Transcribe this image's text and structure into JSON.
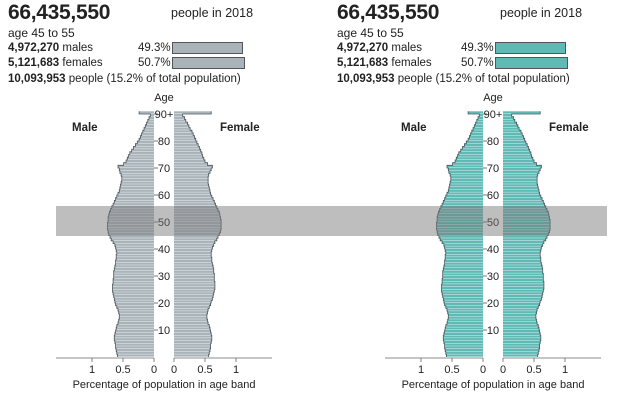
{
  "panels": [
    {
      "population": "66,435,550",
      "population_suffix": "people in 2018",
      "age_range": "age 45 to 55",
      "males_count": "4,972,270",
      "males_label": "males",
      "males_pct": "49.3%",
      "females_count": "5,121,683",
      "females_label": "females",
      "females_pct": "50.7%",
      "total_count": "10,093,953",
      "total_text": "people (15.2% of total population)",
      "color": "#a9b4ba"
    },
    {
      "population": "66,435,550",
      "population_suffix": "people in 2018",
      "age_range": "age 45 to 55",
      "males_count": "4,972,270",
      "males_label": "males",
      "males_pct": "49.3%",
      "females_count": "5,121,683",
      "females_label": "females",
      "females_pct": "50.7%",
      "total_count": "10,093,953",
      "total_text": "people (15.2% of total population)",
      "color": "#5fbab6"
    }
  ],
  "chart_data": {
    "type": "bar",
    "orientation": "horizontal-population-pyramid",
    "age_axis_title": "Age",
    "age_ticks": [
      "10",
      "20",
      "30",
      "40",
      "50",
      "60",
      "70",
      "80",
      "90+"
    ],
    "xlabel": "Percentage of population in age band",
    "x_ticks_male": [
      "1",
      "0.5",
      "0"
    ],
    "x_ticks_female": [
      "0",
      "0.5",
      "1"
    ],
    "xlim": [
      0,
      1.4
    ],
    "male_label": "Male",
    "female_label": "Female",
    "highlight_age_range": [
      45,
      55
    ],
    "ages": [
      0,
      1,
      2,
      3,
      4,
      5,
      6,
      7,
      8,
      9,
      10,
      11,
      12,
      13,
      14,
      15,
      16,
      17,
      18,
      19,
      20,
      21,
      22,
      23,
      24,
      25,
      26,
      27,
      28,
      29,
      30,
      31,
      32,
      33,
      34,
      35,
      36,
      37,
      38,
      39,
      40,
      41,
      42,
      43,
      44,
      45,
      46,
      47,
      48,
      49,
      50,
      51,
      52,
      53,
      54,
      55,
      56,
      57,
      58,
      59,
      60,
      61,
      62,
      63,
      64,
      65,
      66,
      67,
      68,
      69,
      70,
      71,
      72,
      73,
      74,
      75,
      76,
      77,
      78,
      79,
      80,
      81,
      82,
      83,
      84,
      85,
      86,
      87,
      88,
      89,
      90
    ],
    "series": [
      {
        "name": "Male",
        "values": [
          0.59,
          0.6,
          0.61,
          0.62,
          0.62,
          0.63,
          0.64,
          0.64,
          0.63,
          0.62,
          0.61,
          0.6,
          0.58,
          0.57,
          0.56,
          0.56,
          0.57,
          0.58,
          0.6,
          0.62,
          0.63,
          0.64,
          0.65,
          0.66,
          0.67,
          0.67,
          0.67,
          0.66,
          0.66,
          0.65,
          0.65,
          0.65,
          0.64,
          0.63,
          0.62,
          0.62,
          0.61,
          0.61,
          0.6,
          0.61,
          0.62,
          0.63,
          0.66,
          0.69,
          0.71,
          0.73,
          0.74,
          0.75,
          0.75,
          0.75,
          0.74,
          0.74,
          0.73,
          0.72,
          0.7,
          0.68,
          0.66,
          0.64,
          0.62,
          0.6,
          0.58,
          0.56,
          0.55,
          0.54,
          0.53,
          0.52,
          0.52,
          0.53,
          0.55,
          0.56,
          0.58,
          0.49,
          0.45,
          0.43,
          0.41,
          0.39,
          0.36,
          0.33,
          0.3,
          0.27,
          0.24,
          0.22,
          0.2,
          0.18,
          0.16,
          0.14,
          0.12,
          0.1,
          0.08,
          0.06,
          0.24
        ]
      },
      {
        "name": "Female",
        "values": [
          0.56,
          0.57,
          0.58,
          0.59,
          0.59,
          0.6,
          0.61,
          0.61,
          0.6,
          0.59,
          0.58,
          0.57,
          0.55,
          0.54,
          0.53,
          0.53,
          0.54,
          0.55,
          0.57,
          0.59,
          0.6,
          0.62,
          0.63,
          0.64,
          0.65,
          0.66,
          0.66,
          0.66,
          0.65,
          0.65,
          0.65,
          0.64,
          0.64,
          0.63,
          0.62,
          0.61,
          0.61,
          0.6,
          0.6,
          0.61,
          0.62,
          0.64,
          0.66,
          0.69,
          0.71,
          0.73,
          0.75,
          0.76,
          0.76,
          0.76,
          0.76,
          0.75,
          0.74,
          0.73,
          0.71,
          0.69,
          0.67,
          0.65,
          0.63,
          0.61,
          0.59,
          0.58,
          0.57,
          0.56,
          0.55,
          0.55,
          0.55,
          0.56,
          0.58,
          0.6,
          0.62,
          0.54,
          0.5,
          0.48,
          0.46,
          0.45,
          0.43,
          0.41,
          0.39,
          0.37,
          0.35,
          0.33,
          0.31,
          0.29,
          0.26,
          0.24,
          0.22,
          0.19,
          0.17,
          0.14,
          0.6
        ]
      }
    ]
  }
}
